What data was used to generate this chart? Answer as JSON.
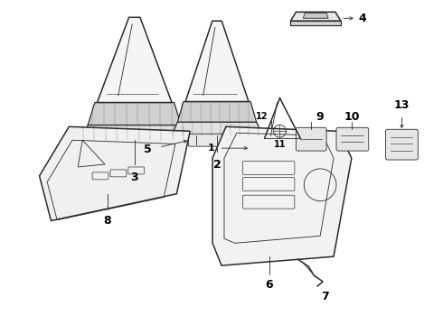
{
  "background_color": "#ffffff",
  "line_color": "#2a2a2a",
  "label_color": "#000000",
  "figsize": [
    4.9,
    3.6
  ],
  "dpi": 100,
  "lw_main": 1.1,
  "lw_thin": 0.6,
  "lw_label": 0.5
}
